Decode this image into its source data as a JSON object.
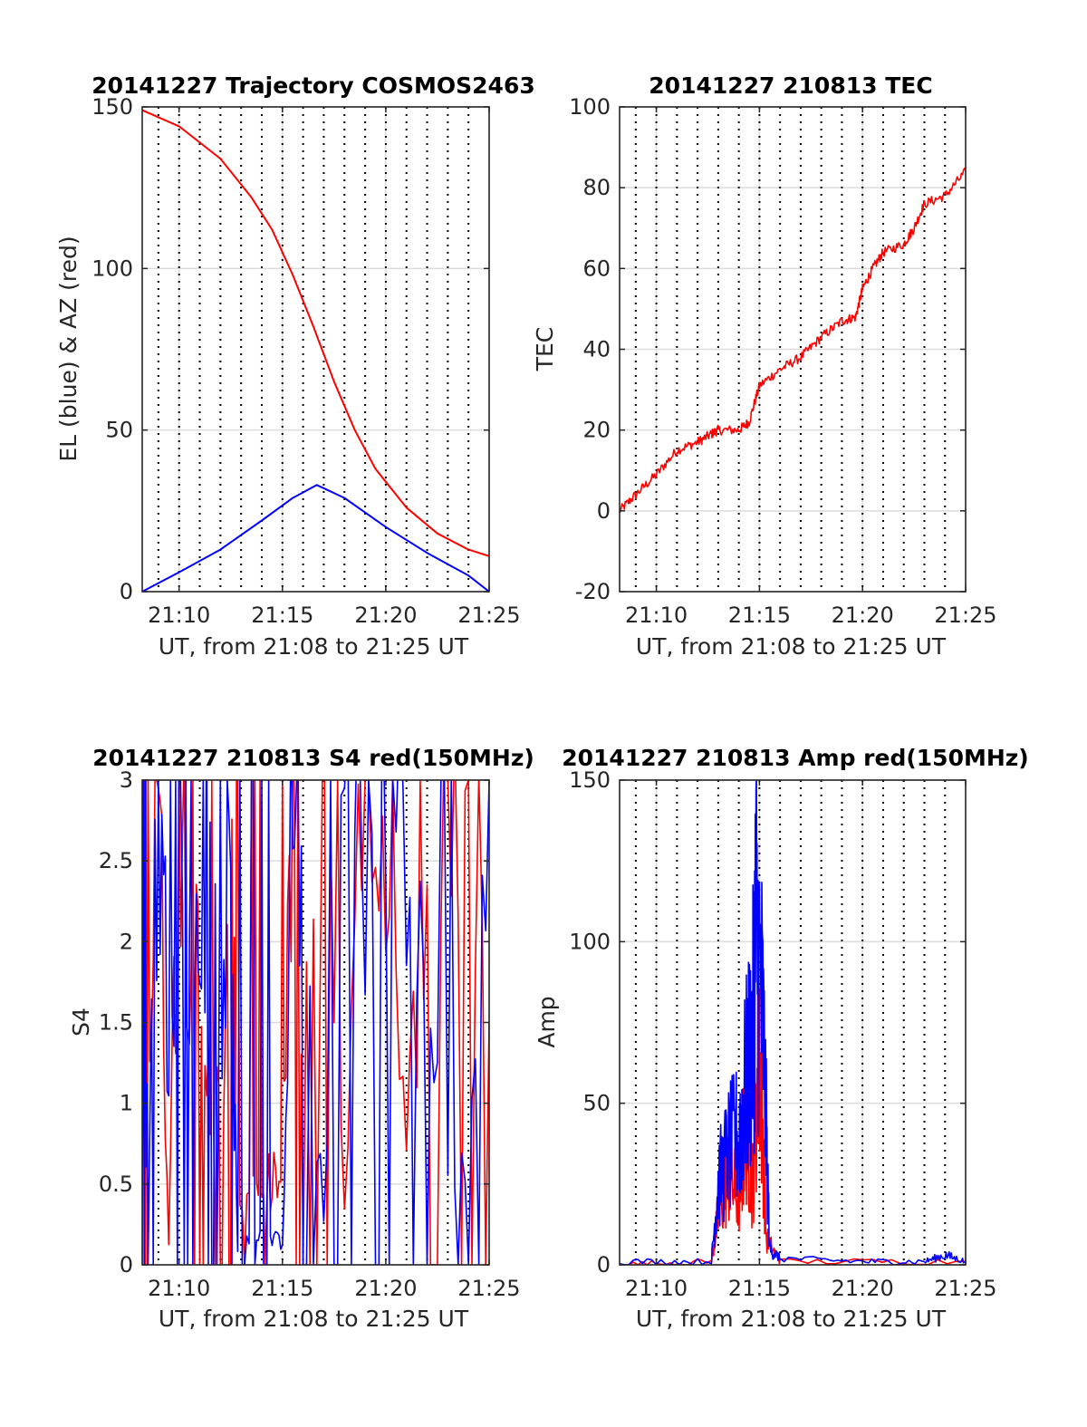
{
  "chart_data": [
    {
      "id": "traj",
      "type": "line",
      "title": "20141227 Trajectory COSMOS2463",
      "xlabel": "UT, from 21:08 to 21:25 UT",
      "ylabel": "EL (blue) & AZ (red)",
      "xlim": [
        "21:08:13",
        "21:25:00"
      ],
      "ylim": [
        0,
        150
      ],
      "xticks": [
        "21:10",
        "21:15",
        "21:20",
        "21:25"
      ],
      "yticks": [
        "0",
        "50",
        "100",
        "150"
      ],
      "grid": true,
      "colors": {
        "EL": "#0000ff",
        "AZ": "#ff0000"
      },
      "series": [
        {
          "key": "EL",
          "x": [
            "21:08:13",
            "21:10:00",
            "21:12:00",
            "21:14:00",
            "21:15:30",
            "21:16:40",
            "21:18:00",
            "21:20:00",
            "21:22:00",
            "21:24:00",
            "21:25:00"
          ],
          "values": [
            0,
            6,
            13,
            22,
            29,
            33,
            29,
            20,
            12,
            5,
            0
          ]
        },
        {
          "key": "AZ",
          "x": [
            "21:08:13",
            "21:10:00",
            "21:12:00",
            "21:13:30",
            "21:14:30",
            "21:15:30",
            "21:16:30",
            "21:17:30",
            "21:18:30",
            "21:19:30",
            "21:21:00",
            "21:22:30",
            "21:24:00",
            "21:25:00"
          ],
          "values": [
            149,
            144,
            134,
            122,
            112,
            98,
            82,
            65,
            50,
            38,
            26,
            18,
            13,
            11
          ]
        }
      ]
    },
    {
      "id": "tec",
      "type": "line",
      "title": "20141227 210813 TEC",
      "xlabel": "UT, from 21:08 to 21:25 UT",
      "ylabel": "TEC",
      "xlim": [
        "21:08:13",
        "21:25:00"
      ],
      "ylim": [
        -20,
        100
      ],
      "xticks": [
        "21:10",
        "21:15",
        "21:20",
        "21:25"
      ],
      "yticks": [
        "-20",
        "0",
        "20",
        "40",
        "60",
        "80",
        "100"
      ],
      "grid": true,
      "colors": {
        "TEC": "#ff0000"
      },
      "series": [
        {
          "key": "TEC",
          "x": [
            "21:08:13",
            "21:09:00",
            "21:10:00",
            "21:11:00",
            "21:12:00",
            "21:12:40",
            "21:13:00",
            "21:14:00",
            "21:14:30",
            "21:15:00",
            "21:16:00",
            "21:17:00",
            "21:18:00",
            "21:19:00",
            "21:19:40",
            "21:20:00",
            "21:20:30",
            "21:21:00",
            "21:22:00",
            "21:22:30",
            "21:23:00",
            "21:24:00",
            "21:25:00"
          ],
          "values": [
            0,
            4,
            9,
            15,
            17,
            19,
            20,
            20,
            22,
            31,
            35,
            38,
            43,
            47,
            48,
            55,
            60,
            64,
            66,
            70,
            76,
            78,
            84
          ]
        }
      ]
    },
    {
      "id": "s4",
      "type": "line",
      "title": "20141227 210813 S4 red(150MHz)",
      "xlabel": "UT, from 21:08 to 21:25 UT",
      "ylabel": "S4",
      "xlim": [
        "21:08:13",
        "21:25:00"
      ],
      "ylim": [
        0,
        3
      ],
      "xticks": [
        "21:10",
        "21:15",
        "21:20",
        "21:25"
      ],
      "yticks": [
        "0",
        "0.5",
        "1",
        "1.5",
        "2",
        "2.5",
        "3"
      ],
      "grid": true,
      "colors": {
        "red": "#ff0000",
        "blue": "#0000ff"
      },
      "series": [
        {
          "key": "red",
          "x": [
            "21:08:13",
            "21:08:30",
            "21:09:00",
            "21:09:30",
            "21:10:00",
            "21:10:30",
            "21:11:00",
            "21:11:30",
            "21:12:00",
            "21:12:30",
            "21:12:50",
            "21:13:30",
            "21:14:00",
            "21:14:30",
            "21:15:00",
            "21:15:30",
            "21:16:00",
            "21:17:00",
            "21:18:00",
            "21:19:00",
            "21:20:00",
            "21:21:00",
            "21:22:00",
            "21:23:00",
            "21:24:00",
            "21:25:00"
          ],
          "values": [
            3,
            1.2,
            3,
            0.2,
            3,
            2.2,
            1.6,
            1.3,
            0.8,
            2.5,
            0.4,
            0.5,
            0.3,
            0.6,
            0.4,
            3,
            1.8,
            3,
            0.5,
            3,
            2.5,
            0.6,
            3,
            2.8,
            3,
            1.5
          ]
        },
        {
          "key": "blue",
          "x": [
            "21:08:13",
            "21:08:30",
            "21:09:00",
            "21:09:30",
            "21:10:00",
            "21:10:30",
            "21:11:00",
            "21:11:30",
            "21:12:00",
            "21:12:30",
            "21:12:50",
            "21:13:30",
            "21:14:00",
            "21:14:30",
            "21:15:00",
            "21:15:30",
            "21:16:00",
            "21:17:00",
            "21:18:00",
            "21:19:00",
            "21:20:00",
            "21:21:00",
            "21:22:00",
            "21:23:00",
            "21:24:00",
            "21:25:00"
          ],
          "values": [
            1.0,
            0.9,
            2.8,
            1.5,
            3,
            2.4,
            1.9,
            3,
            1.2,
            2.2,
            0.1,
            0.15,
            0.2,
            0.15,
            0.15,
            3,
            2.2,
            0.3,
            3,
            2.6,
            3,
            2.8,
            1.5,
            0.55,
            0.55,
            3
          ]
        }
      ]
    },
    {
      "id": "amp",
      "type": "line",
      "title": "20141227 210813 Amp red(150MHz)",
      "xlabel": "UT, from 21:08 to 21:25 UT",
      "ylabel": "Amp",
      "xlim": [
        "21:08:13",
        "21:25:00"
      ],
      "ylim": [
        0,
        150
      ],
      "xticks": [
        "21:10",
        "21:15",
        "21:20",
        "21:25"
      ],
      "yticks": [
        "0",
        "50",
        "100",
        "150"
      ],
      "grid": true,
      "colors": {
        "red": "#ff0000",
        "blue": "#0000ff"
      },
      "series": [
        {
          "key": "red",
          "x": [
            "21:08:13",
            "21:12:40",
            "21:13:00",
            "21:13:30",
            "21:14:00",
            "21:14:20",
            "21:14:40",
            "21:15:00",
            "21:15:20",
            "21:16:00",
            "21:25:00"
          ],
          "values": [
            0,
            1,
            15,
            28,
            20,
            45,
            25,
            70,
            8,
            1,
            1
          ]
        },
        {
          "key": "blue",
          "x": [
            "21:08:13",
            "21:12:40",
            "21:13:00",
            "21:13:30",
            "21:14:00",
            "21:14:20",
            "21:14:40",
            "21:14:50",
            "21:15:10",
            "21:15:30",
            "21:16:00",
            "21:20:00",
            "21:23:00",
            "21:24:00",
            "21:25:00"
          ],
          "values": [
            1,
            1,
            25,
            35,
            40,
            55,
            70,
            105,
            75,
            5,
            2,
            1,
            1,
            3,
            1
          ]
        }
      ]
    }
  ]
}
